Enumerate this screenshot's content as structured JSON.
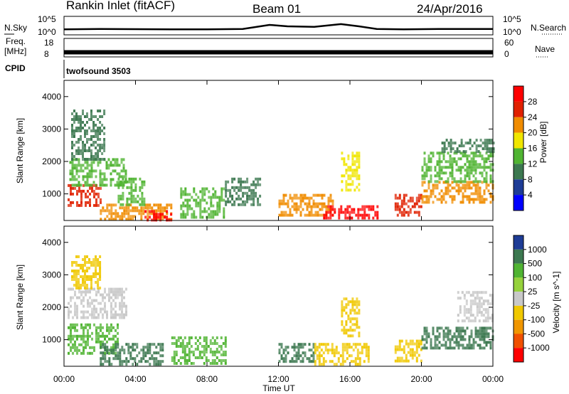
{
  "header": {
    "station": "Rankin Inlet (fitACF)",
    "beam": "Beam 01",
    "date": "24/Apr/2016"
  },
  "left_labels": {
    "nsky": "N.Sky",
    "nsky_ticks": [
      "10^5",
      "10^0"
    ],
    "freq_line1": "Freq.",
    "freq_line2": "[MHz]",
    "freq_ticks": [
      "18",
      "8"
    ],
    "cpid": "CPID"
  },
  "right_labels": {
    "nsearch_ticks": [
      "10^5",
      "10^0"
    ],
    "nsearch": "N.Search",
    "nave_ticks": [
      "60",
      "0"
    ],
    "nave": "Nave"
  },
  "cpid_text": "twofsound 3503",
  "chart_data": [
    {
      "type": "line",
      "title": "N.Sky / N.Search",
      "ylabel": "N.Sky",
      "yscale": "log",
      "ylim": [
        1,
        100000
      ],
      "x": [
        "00:00",
        "02:00",
        "04:00",
        "06:00",
        "08:00",
        "10:00",
        "11:30",
        "12:30",
        "14:00",
        "15:30",
        "16:30",
        "17:30",
        "19:00",
        "21:00",
        "00:00"
      ],
      "series": [
        {
          "name": "N.Sky",
          "values": [
            30,
            40,
            35,
            30,
            30,
            40,
            500,
            200,
            150,
            800,
            200,
            40,
            30,
            40,
            40
          ]
        }
      ]
    },
    {
      "type": "line",
      "title": "Freq / Nave",
      "ylabel": "Freq. [MHz]",
      "ylim": [
        8,
        18
      ],
      "x": [
        "00:00",
        "04:00",
        "08:00",
        "12:00",
        "16:00",
        "20:00",
        "00:00"
      ],
      "series": [
        {
          "name": "Freq.",
          "values": [
            10.5,
            10.5,
            10.5,
            10.5,
            10.5,
            10.5,
            10.5
          ]
        }
      ]
    },
    {
      "type": "heatmap",
      "title": "Power",
      "xlabel": "",
      "ylabel": "Slant Range [km]",
      "xlim": [
        "00:00",
        "00:00"
      ],
      "ylim": [
        180,
        4500
      ],
      "x_ticks": [
        "00:00",
        "04:00",
        "08:00",
        "12:00",
        "16:00",
        "20:00",
        "00:00"
      ],
      "y_ticks": [
        "1000",
        "2000",
        "3000",
        "4000"
      ],
      "colorbar": {
        "label": "Power [dB]",
        "ticks": [
          "28",
          "24",
          "20",
          "16",
          "12",
          "8",
          "4"
        ],
        "colors": [
          "#0000ff",
          "#1e3c96",
          "#3c7850",
          "#50b432",
          "#f0e600",
          "#f08c00",
          "#e02000",
          "#ff0000"
        ]
      },
      "regions": [
        {
          "t0": 0.2,
          "t1": 2.0,
          "r0": 600,
          "r1": 1300,
          "level": 24
        },
        {
          "t0": 0.3,
          "t1": 3.5,
          "r0": 1300,
          "r1": 2100,
          "level": 12
        },
        {
          "t0": 0.4,
          "t1": 2.3,
          "r0": 2100,
          "r1": 3600,
          "level": 8
        },
        {
          "t0": 2.0,
          "t1": 6.0,
          "r0": 250,
          "r1": 700,
          "level": 20
        },
        {
          "t0": 4.5,
          "t1": 6.0,
          "r0": 200,
          "r1": 500,
          "level": 28
        },
        {
          "t0": 3.0,
          "t1": 4.5,
          "r0": 700,
          "r1": 1500,
          "level": 12
        },
        {
          "t0": 6.5,
          "t1": 9.0,
          "r0": 300,
          "r1": 1200,
          "level": 12
        },
        {
          "t0": 9.0,
          "t1": 11.0,
          "r0": 700,
          "r1": 1500,
          "level": 8
        },
        {
          "t0": 12.0,
          "t1": 15.0,
          "r0": 300,
          "r1": 1000,
          "level": 20
        },
        {
          "t0": 14.5,
          "t1": 17.5,
          "r0": 250,
          "r1": 650,
          "level": 28
        },
        {
          "t0": 15.5,
          "t1": 16.5,
          "r0": 1100,
          "r1": 2300,
          "level": 16
        },
        {
          "t0": 18.5,
          "t1": 20.0,
          "r0": 300,
          "r1": 1000,
          "level": 24
        },
        {
          "t0": 20.0,
          "t1": 24.0,
          "r0": 700,
          "r1": 1400,
          "level": 20
        },
        {
          "t0": 20.0,
          "t1": 24.0,
          "r0": 1400,
          "r1": 2300,
          "level": 12
        },
        {
          "t0": 21.0,
          "t1": 24.0,
          "r0": 2300,
          "r1": 2700,
          "level": 8
        }
      ]
    },
    {
      "type": "heatmap",
      "title": "Velocity",
      "xlabel": "Time UT",
      "ylabel": "Slant Range [km]",
      "xlim": [
        "00:00",
        "00:00"
      ],
      "ylim": [
        180,
        4500
      ],
      "x_ticks": [
        "00:00",
        "04:00",
        "08:00",
        "12:00",
        "16:00",
        "20:00",
        "00:00"
      ],
      "y_ticks": [
        "1000",
        "2000",
        "3000",
        "4000"
      ],
      "colorbar": {
        "label": "Velocity [m s^-1]",
        "ticks": [
          "1000",
          "500",
          "100",
          "25",
          "-25",
          "-100",
          "-500",
          "-1000"
        ],
        "colors": [
          "#1e3c96",
          "#3c7850",
          "#50b432",
          "#96d23c",
          "#c8c8c8",
          "#f0c800",
          "#f09600",
          "#f05000",
          "#ff0000"
        ]
      },
      "regions": [
        {
          "t0": 0.2,
          "t1": 3.5,
          "r0": 1700,
          "r1": 2600,
          "level": 0
        },
        {
          "t0": 0.2,
          "t1": 3.0,
          "r0": 600,
          "r1": 1500,
          "level": 100
        },
        {
          "t0": 2.0,
          "t1": 5.5,
          "r0": 250,
          "r1": 900,
          "level": 500
        },
        {
          "t0": 0.4,
          "t1": 2.0,
          "r0": 2600,
          "r1": 3600,
          "level": -100
        },
        {
          "t0": 6.0,
          "t1": 9.0,
          "r0": 300,
          "r1": 1100,
          "level": 100
        },
        {
          "t0": 12.0,
          "t1": 14.0,
          "r0": 300,
          "r1": 900,
          "level": 500
        },
        {
          "t0": 14.0,
          "t1": 17.0,
          "r0": 250,
          "r1": 900,
          "level": -100
        },
        {
          "t0": 15.5,
          "t1": 16.5,
          "r0": 1100,
          "r1": 2300,
          "level": -100
        },
        {
          "t0": 18.5,
          "t1": 20.0,
          "r0": 300,
          "r1": 1000,
          "level": -100
        },
        {
          "t0": 20.0,
          "t1": 24.0,
          "r0": 700,
          "r1": 1400,
          "level": 500
        },
        {
          "t0": 22.0,
          "t1": 24.0,
          "r0": 1600,
          "r1": 2500,
          "level": 0
        }
      ]
    }
  ]
}
